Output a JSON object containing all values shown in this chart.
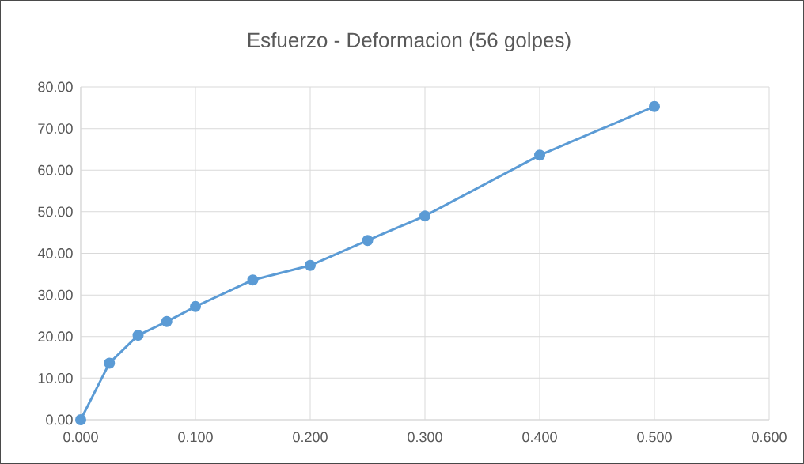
{
  "chart_data": {
    "type": "line",
    "title": "Esfuerzo - Deformacion (56 golpes)",
    "x": [
      0,
      0.025,
      0.05,
      0.075,
      0.1,
      0.15,
      0.2,
      0.25,
      0.3,
      0.4,
      0.5
    ],
    "series": [
      {
        "color": "#5b9bd5",
        "values": [
          0,
          13.6,
          20.3,
          23.6,
          27.2,
          33.6,
          37.1,
          43.1,
          49.0,
          63.6,
          75.3
        ]
      }
    ],
    "xlim": [
      0,
      0.6
    ],
    "xticks": [
      {
        "value": 0,
        "label": "0.000"
      },
      {
        "value": 0.1,
        "label": "0.100"
      },
      {
        "value": 0.2,
        "label": "0.200"
      },
      {
        "value": 0.3,
        "label": "0.300"
      },
      {
        "value": 0.4,
        "label": "0.400"
      },
      {
        "value": 0.5,
        "label": "0.500"
      },
      {
        "value": 0.6,
        "label": "0.600"
      }
    ],
    "ylim": [
      0,
      80
    ],
    "yticks": [
      {
        "value": 0,
        "label": "0.00"
      },
      {
        "value": 10,
        "label": "10.00"
      },
      {
        "value": 20,
        "label": "20.00"
      },
      {
        "value": 30,
        "label": "30.00"
      },
      {
        "value": 40,
        "label": "40.00"
      },
      {
        "value": 50,
        "label": "50.00"
      },
      {
        "value": 60,
        "label": "60.00"
      },
      {
        "value": 70,
        "label": "70.00"
      },
      {
        "value": 80,
        "label": "80.00"
      }
    ],
    "grid": true,
    "marker": "circle",
    "line_style": "solid"
  }
}
